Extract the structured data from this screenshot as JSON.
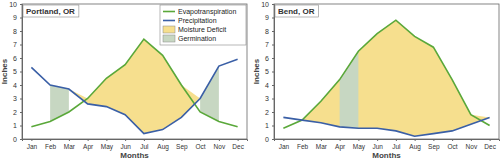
{
  "chart_data": [
    {
      "type": "line",
      "title": "Portland, OR",
      "y_label": "Inches",
      "x_label": "Months",
      "categories": [
        "Jan",
        "Feb",
        "Mar",
        "Apr",
        "May",
        "Jun",
        "Jul",
        "Aug",
        "Sep",
        "Oct",
        "Nov",
        "Dec"
      ],
      "series": [
        {
          "name": "Evapotranspiration",
          "color": "#5aa83a",
          "values": [
            0.9,
            1.3,
            2.0,
            3.0,
            4.5,
            5.5,
            7.4,
            6.2,
            4.0,
            2.0,
            1.3,
            0.9
          ]
        },
        {
          "name": "Precipitation",
          "color": "#3a5fa6",
          "values": [
            5.3,
            4.0,
            3.7,
            2.6,
            2.4,
            1.8,
            0.4,
            0.7,
            1.6,
            3.0,
            5.4,
            5.9
          ]
        }
      ],
      "areas": [
        {
          "name": "Moisture Deficit",
          "color": "#f6df8e",
          "ranges": [
            [
              "Jan",
              "Dec"
            ]
          ]
        },
        {
          "name": "Germination",
          "color": "#c7d7c2",
          "ranges": [
            [
              "Feb",
              "Mar"
            ],
            [
              "Oct",
              "Nov"
            ]
          ]
        }
      ],
      "ylim": [
        0,
        10
      ],
      "yticks": [
        0,
        1,
        2,
        3,
        4,
        5,
        6,
        7,
        8,
        9,
        10
      ],
      "grid": false,
      "legend": "top-right"
    },
    {
      "type": "line",
      "title": "Bend, OR",
      "y_label": "Inches",
      "x_label": "Months",
      "categories": [
        "Jan",
        "Feb",
        "Mar",
        "Apr",
        "May",
        "Jun",
        "Jul",
        "Aug",
        "Sep",
        "Oct",
        "Nov",
        "Dec"
      ],
      "series": [
        {
          "color": "#5aa83a",
          "values": [
            0.8,
            1.4,
            2.8,
            4.4,
            6.5,
            7.8,
            8.8,
            7.6,
            6.8,
            4.4,
            1.8,
            1.0
          ]
        },
        {
          "color": "#3a5fa6",
          "values": [
            1.6,
            1.4,
            1.2,
            0.9,
            0.8,
            0.8,
            0.6,
            0.2,
            0.4,
            0.6,
            1.1,
            1.6
          ]
        }
      ],
      "areas": [
        {
          "color": "#f6df8e",
          "ranges": [
            [
              "Jan",
              "Dec"
            ]
          ]
        },
        {
          "color": "#c7d7c2",
          "ranges": [
            [
              "Apr",
              "May"
            ]
          ]
        }
      ],
      "ylim": [
        0,
        10
      ],
      "yticks": [
        0,
        1,
        2,
        3,
        4,
        5,
        6,
        7,
        8,
        9,
        10
      ],
      "grid": false
    }
  ]
}
